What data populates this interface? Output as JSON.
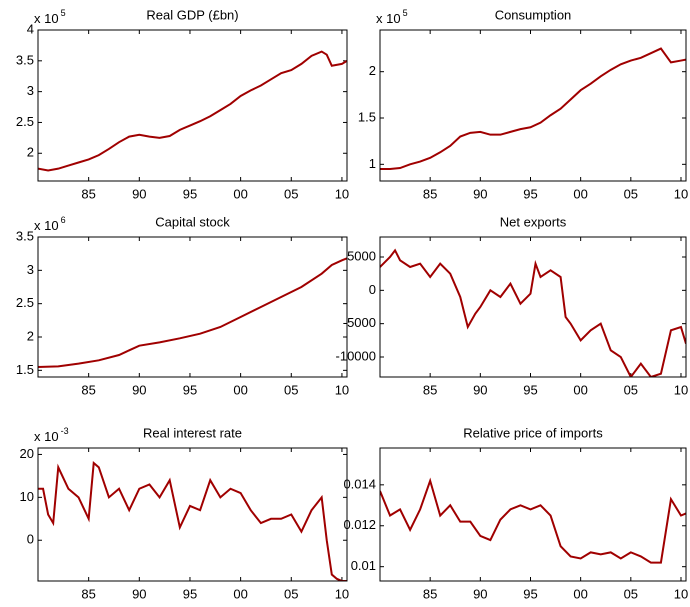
{
  "chart_data": [
    {
      "type": "line",
      "title": "Real GDP (£bn)",
      "y_multiplier": {
        "base": "x 10",
        "exponent": "5"
      },
      "xlim": [
        1980,
        2010.5
      ],
      "xticks": [
        {
          "value": 1985,
          "label": "85"
        },
        {
          "value": 1990,
          "label": "90"
        },
        {
          "value": 1995,
          "label": "95"
        },
        {
          "value": 2000,
          "label": "00"
        },
        {
          "value": 2005,
          "label": "05"
        },
        {
          "value": 2010,
          "label": "10"
        }
      ],
      "ylim": [
        1.55,
        4
      ],
      "yticks": [
        2,
        2.5,
        3,
        3.5,
        4
      ],
      "x": [
        1980,
        1981,
        1982,
        1983,
        1984,
        1985,
        1986,
        1987,
        1988,
        1989,
        1990,
        1991,
        1992,
        1993,
        1994,
        1995,
        1996,
        1997,
        1998,
        1999,
        2000,
        2001,
        2002,
        2003,
        2004,
        2005,
        2006,
        2007,
        2008,
        2008.5,
        2009,
        2010,
        2010.5
      ],
      "series": [
        {
          "name": "Real GDP",
          "color": "#a00000",
          "values": [
            1.75,
            1.72,
            1.75,
            1.8,
            1.85,
            1.9,
            1.97,
            2.07,
            2.18,
            2.27,
            2.3,
            2.27,
            2.25,
            2.28,
            2.38,
            2.45,
            2.52,
            2.6,
            2.7,
            2.8,
            2.93,
            3.02,
            3.1,
            3.2,
            3.3,
            3.35,
            3.45,
            3.58,
            3.65,
            3.6,
            3.42,
            3.45,
            3.5
          ]
        }
      ]
    },
    {
      "type": "line",
      "title": "Consumption",
      "y_multiplier": {
        "base": "x 10",
        "exponent": "5"
      },
      "xlim": [
        1980,
        2010.5
      ],
      "xticks": [
        {
          "value": 1985,
          "label": "85"
        },
        {
          "value": 1990,
          "label": "90"
        },
        {
          "value": 1995,
          "label": "95"
        },
        {
          "value": 2000,
          "label": "00"
        },
        {
          "value": 2005,
          "label": "05"
        },
        {
          "value": 2010,
          "label": "10"
        }
      ],
      "ylim": [
        0.82,
        2.45
      ],
      "yticks": [
        1,
        1.5,
        2
      ],
      "x": [
        1980,
        1981,
        1982,
        1983,
        1984,
        1985,
        1986,
        1987,
        1988,
        1989,
        1990,
        1991,
        1992,
        1993,
        1994,
        1995,
        1996,
        1997,
        1998,
        1999,
        2000,
        2001,
        2002,
        2003,
        2004,
        2005,
        2006,
        2007,
        2008,
        2009,
        2010,
        2010.5
      ],
      "series": [
        {
          "name": "Consumption",
          "color": "#a00000",
          "values": [
            0.95,
            0.95,
            0.96,
            1.0,
            1.03,
            1.07,
            1.13,
            1.2,
            1.3,
            1.34,
            1.35,
            1.32,
            1.32,
            1.35,
            1.38,
            1.4,
            1.45,
            1.53,
            1.6,
            1.7,
            1.8,
            1.87,
            1.95,
            2.02,
            2.08,
            2.12,
            2.15,
            2.2,
            2.25,
            2.1,
            2.12,
            2.13
          ]
        }
      ]
    },
    {
      "type": "line",
      "title": "Capital stock",
      "y_multiplier": {
        "base": "x 10",
        "exponent": "6"
      },
      "xlim": [
        1980,
        2010.5
      ],
      "xticks": [
        {
          "value": 1985,
          "label": "85"
        },
        {
          "value": 1990,
          "label": "90"
        },
        {
          "value": 1995,
          "label": "95"
        },
        {
          "value": 2000,
          "label": "00"
        },
        {
          "value": 2005,
          "label": "05"
        },
        {
          "value": 2010,
          "label": "10"
        }
      ],
      "ylim": [
        1.4,
        3.5
      ],
      "yticks": [
        1.5,
        2,
        2.5,
        3,
        3.5
      ],
      "x": [
        1980,
        1982,
        1984,
        1986,
        1988,
        1989,
        1990,
        1992,
        1994,
        1996,
        1998,
        2000,
        2002,
        2004,
        2006,
        2008,
        2009,
        2010,
        2010.5
      ],
      "series": [
        {
          "name": "Capital stock",
          "color": "#a00000",
          "values": [
            1.55,
            1.56,
            1.6,
            1.65,
            1.73,
            1.8,
            1.87,
            1.92,
            1.98,
            2.05,
            2.15,
            2.3,
            2.45,
            2.6,
            2.75,
            2.95,
            3.08,
            3.15,
            3.18
          ]
        }
      ]
    },
    {
      "type": "line",
      "title": "Net exports",
      "xlim": [
        1980,
        2010.5
      ],
      "xticks": [
        {
          "value": 1985,
          "label": "85"
        },
        {
          "value": 1990,
          "label": "90"
        },
        {
          "value": 1995,
          "label": "95"
        },
        {
          "value": 2000,
          "label": "00"
        },
        {
          "value": 2005,
          "label": "05"
        },
        {
          "value": 2010,
          "label": "10"
        }
      ],
      "ylim": [
        -13000,
        8000
      ],
      "yticks": [
        -10000,
        -5000,
        0,
        5000
      ],
      "x": [
        1980,
        1981,
        1981.5,
        1982,
        1983,
        1984,
        1985,
        1986,
        1987,
        1988,
        1988.75,
        1989.5,
        1990,
        1991,
        1992,
        1993,
        1994,
        1995,
        1995.5,
        1996,
        1997,
        1998,
        1998.5,
        1999,
        2000,
        2001,
        2002,
        2003,
        2004,
        2005,
        2006,
        2007,
        2008,
        2009,
        2010,
        2010.5
      ],
      "series": [
        {
          "name": "Net exports",
          "color": "#a00000",
          "values": [
            3500,
            5000,
            6000,
            4500,
            3500,
            4000,
            2000,
            4000,
            2500,
            -1000,
            -5500,
            -3500,
            -2500,
            0,
            -1000,
            1000,
            -2000,
            -500,
            4000,
            2000,
            3000,
            2000,
            -4000,
            -5000,
            -7500,
            -6000,
            -5000,
            -9000,
            -10000,
            -13000,
            -11000,
            -13000,
            -12500,
            -6000,
            -5500,
            -8000
          ]
        }
      ]
    },
    {
      "type": "line",
      "title": "Real interest rate",
      "y_multiplier": {
        "base": "x 10",
        "exponent": "-3"
      },
      "xlim": [
        1980,
        2010.5
      ],
      "xticks": [
        {
          "value": 1985,
          "label": "85"
        },
        {
          "value": 1990,
          "label": "90"
        },
        {
          "value": 1995,
          "label": "95"
        },
        {
          "value": 2000,
          "label": "00"
        },
        {
          "value": 2005,
          "label": "05"
        },
        {
          "value": 2010,
          "label": "10"
        }
      ],
      "ylim": [
        -9.5,
        21.5
      ],
      "yticks": [
        0,
        10,
        20
      ],
      "x": [
        1980,
        1980.5,
        1981,
        1981.5,
        1982,
        1983,
        1984,
        1985,
        1985.5,
        1986,
        1987,
        1988,
        1989,
        1990,
        1991,
        1992,
        1993,
        1994,
        1995,
        1996,
        1997,
        1998,
        1999,
        2000,
        2001,
        2002,
        2003,
        2004,
        2005,
        2006,
        2007,
        2008,
        2008.5,
        2009,
        2009.5,
        2010,
        2010.5
      ],
      "series": [
        {
          "name": "Real interest rate",
          "color": "#a00000",
          "values": [
            12,
            12,
            6,
            4,
            17,
            12,
            10,
            5,
            18,
            17,
            10,
            12,
            7,
            12,
            13,
            10,
            14,
            3,
            8,
            7,
            14,
            10,
            12,
            11,
            7,
            4,
            5,
            5,
            6,
            2,
            7,
            10,
            0,
            -8,
            -9,
            -9.5,
            -9.5
          ]
        }
      ]
    },
    {
      "type": "line",
      "title": "Relative price of imports",
      "xlim": [
        1980,
        2010.5
      ],
      "xticks": [
        {
          "value": 1985,
          "label": "85"
        },
        {
          "value": 1990,
          "label": "90"
        },
        {
          "value": 1995,
          "label": "95"
        },
        {
          "value": 2000,
          "label": "00"
        },
        {
          "value": 2005,
          "label": "05"
        },
        {
          "value": 2010,
          "label": "10"
        }
      ],
      "ylim": [
        0.0093,
        0.0158
      ],
      "yticks": [
        0.01,
        0.012,
        0.014
      ],
      "x": [
        1980,
        1981,
        1982,
        1983,
        1984,
        1985,
        1986,
        1987,
        1988,
        1989,
        1990,
        1991,
        1992,
        1993,
        1994,
        1995,
        1996,
        1997,
        1998,
        1999,
        2000,
        2001,
        2002,
        2003,
        2004,
        2005,
        2006,
        2007,
        2008,
        2009,
        2010,
        2010.5
      ],
      "series": [
        {
          "name": "Relative price of imports",
          "color": "#a00000",
          "values": [
            0.0137,
            0.0125,
            0.0128,
            0.0118,
            0.0128,
            0.0142,
            0.0125,
            0.013,
            0.0122,
            0.0122,
            0.0115,
            0.0113,
            0.0123,
            0.0128,
            0.013,
            0.0128,
            0.013,
            0.0125,
            0.011,
            0.0105,
            0.0104,
            0.0107,
            0.0106,
            0.0107,
            0.0104,
            0.0107,
            0.0105,
            0.0102,
            0.0102,
            0.0133,
            0.0125,
            0.0126
          ]
        }
      ]
    }
  ]
}
